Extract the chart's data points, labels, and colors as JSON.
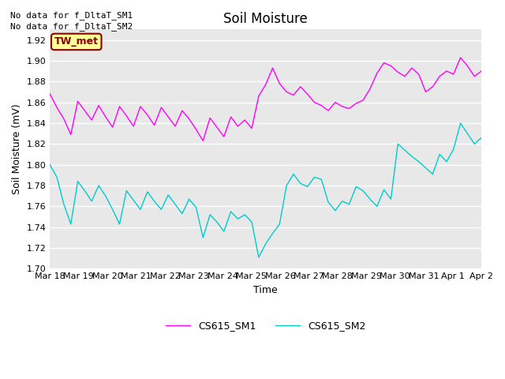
{
  "title": "Soil Moisture",
  "xlabel": "Time",
  "ylabel": "Soil Moisture (mV)",
  "ylim": [
    1.7,
    1.93
  ],
  "yticks": [
    1.7,
    1.72,
    1.74,
    1.76,
    1.78,
    1.8,
    1.82,
    1.84,
    1.86,
    1.88,
    1.9,
    1.92
  ],
  "line1_color": "#FF00FF",
  "line2_color": "#00CCCC",
  "line1_label": "CS615_SM1",
  "line2_label": "CS615_SM2",
  "no_data_text1": "No data for f_DltaT_SM1",
  "no_data_text2": "No data for f_DltaT_SM2",
  "tw_met_label": "TW_met",
  "tw_met_bg": "#FFFF99",
  "tw_met_border": "#8B0000",
  "tw_met_fg": "#8B0000",
  "plot_bg_color": "#E8E8E8",
  "title_fontsize": 12,
  "label_fontsize": 9,
  "tick_fontsize": 8,
  "xticklabels": [
    "Mar 18",
    "Mar 19",
    "Mar 20",
    "Mar 21",
    "Mar 22",
    "Mar 23",
    "Mar 24",
    "Mar 25",
    "Mar 26",
    "Mar 27",
    "Mar 28",
    "Mar 29",
    "Mar 30",
    "Mar 31",
    "Apr 1",
    "Apr 2"
  ],
  "sm1_data": [
    1.868,
    1.855,
    1.844,
    1.829,
    1.861,
    1.852,
    1.843,
    1.857,
    1.846,
    1.836,
    1.856,
    1.847,
    1.837,
    1.856,
    1.848,
    1.838,
    1.855,
    1.846,
    1.837,
    1.852,
    1.844,
    1.834,
    1.823,
    1.845,
    1.836,
    1.827,
    1.846,
    1.837,
    1.843,
    1.835,
    1.866,
    1.877,
    1.893,
    1.878,
    1.87,
    1.867,
    1.875,
    1.868,
    1.86,
    1.857,
    1.852,
    1.86,
    1.856,
    1.854,
    1.859,
    1.862,
    1.873,
    1.888,
    1.898,
    1.895,
    1.889,
    1.885,
    1.893,
    1.887,
    1.87,
    1.875,
    1.885,
    1.89,
    1.887,
    1.903,
    1.895,
    1.885,
    1.89
  ],
  "sm2_data": [
    1.8,
    1.788,
    1.762,
    1.743,
    1.784,
    1.775,
    1.765,
    1.78,
    1.77,
    1.757,
    1.743,
    1.775,
    1.766,
    1.757,
    1.774,
    1.765,
    1.757,
    1.771,
    1.762,
    1.753,
    1.767,
    1.759,
    1.73,
    1.752,
    1.745,
    1.736,
    1.755,
    1.748,
    1.752,
    1.745,
    1.711,
    1.724,
    1.734,
    1.743,
    1.78,
    1.791,
    1.782,
    1.779,
    1.788,
    1.786,
    1.764,
    1.756,
    1.765,
    1.762,
    1.779,
    1.775,
    1.767,
    1.76,
    1.776,
    1.767,
    1.82,
    1.814,
    1.808,
    1.803,
    1.797,
    1.791,
    1.81,
    1.803,
    1.815,
    1.84,
    1.83,
    1.82,
    1.826
  ]
}
